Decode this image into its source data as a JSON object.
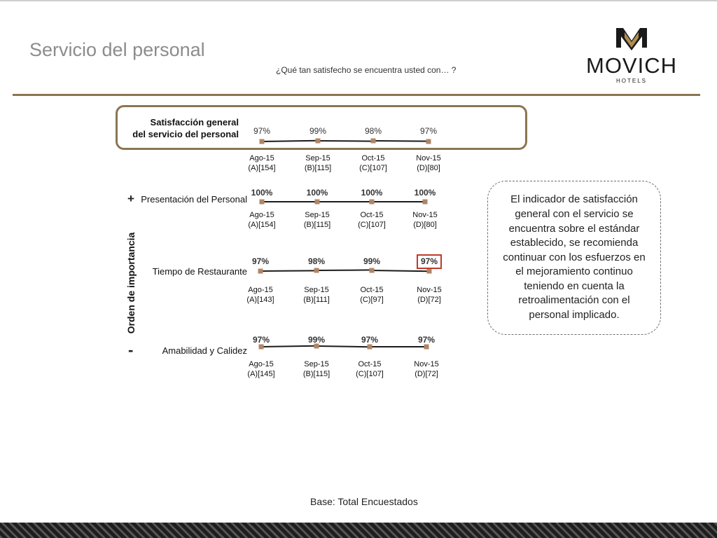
{
  "header": {
    "title": "Servicio del personal",
    "subtitle": "¿Qué tan satisfecho se encuentra usted con… ?",
    "logo_text": "MOVICH",
    "logo_subtext": "HOTELS"
  },
  "colors": {
    "accent_gold": "#8a7651",
    "marker": "#b08566",
    "highlight_red": "#c0392b",
    "title_gray": "#8c8c8c"
  },
  "axis": {
    "side_label": "Orden de importancia",
    "plus": "+",
    "minus": "-"
  },
  "note": {
    "text": "El indicador de satisfacción general con el servicio se encuentra sobre el estándar establecido, se recomienda continuar con los esfuerzos en el mejoramiento continuo teniendo en cuenta la retroalimentación con el personal implicado."
  },
  "footer": {
    "base": "Base: Total Encuestados"
  },
  "chart_data": [
    {
      "type": "line",
      "title": "Satisfacción general del servicio del personal",
      "title_lines": [
        "Satisfacción general",
        "del servicio del personal"
      ],
      "highlighted": true,
      "categories": [
        "Ago-15",
        "Sep-15",
        "Oct-15",
        "Nov-15"
      ],
      "bases": [
        "(A)[154]",
        "(B)[115]",
        "(C)[107]",
        "(D)[80]"
      ],
      "series": [
        {
          "values": [
            97,
            99,
            98,
            97
          ]
        }
      ],
      "labels": [
        "97%",
        "99%",
        "98%",
        "97%"
      ]
    },
    {
      "type": "line",
      "title": "Presentación del Personal",
      "categories": [
        "Ago-15",
        "Sep-15",
        "Oct-15",
        "Nov-15"
      ],
      "bases": [
        "(A)[154]",
        "(B)[115]",
        "(C)[107]",
        "(D)[80]"
      ],
      "series": [
        {
          "values": [
            100,
            100,
            100,
            100
          ]
        }
      ],
      "labels": [
        "100%",
        "100%",
        "100%",
        "100%"
      ]
    },
    {
      "type": "line",
      "title": "Tiempo de Restaurante",
      "categories": [
        "Ago-15",
        "Sep-15",
        "Oct-15",
        "Nov-15"
      ],
      "bases": [
        "(A)[143]",
        "(B)[111]",
        "(C)[97]",
        "(D)[72]"
      ],
      "series": [
        {
          "values": [
            97,
            98,
            99,
            97
          ]
        }
      ],
      "labels": [
        "97%",
        "98%",
        "99%",
        "97%"
      ],
      "boxed_index": 3
    },
    {
      "type": "line",
      "title": "Amabilidad y Calidez",
      "categories": [
        "Ago-15",
        "Sep-15",
        "Oct-15",
        "Nov-15"
      ],
      "bases": [
        "(A)[145]",
        "(B)[115]",
        "(C)[107]",
        "(D)[72]"
      ],
      "series": [
        {
          "values": [
            97,
            99,
            97,
            97
          ]
        }
      ],
      "labels": [
        "97%",
        "99%",
        "97%",
        "97%"
      ]
    }
  ]
}
